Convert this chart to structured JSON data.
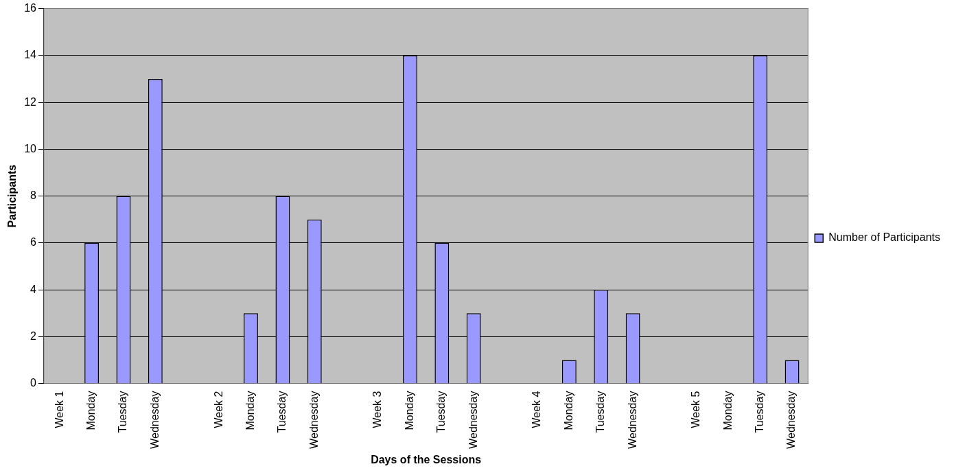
{
  "chart_data": {
    "type": "bar",
    "xlabel": "Days of the Sessions",
    "ylabel": "Participants",
    "categories": [
      "Week 1",
      "Monday",
      "Tuesday",
      "Wednesday",
      null,
      "Week 2",
      "Monday",
      "Tuesday",
      "Wednesday",
      null,
      "Week 3",
      "Monday",
      "Tuesday",
      "Wednesday",
      null,
      "Week 4",
      "Monday",
      "Tuesday",
      "Wednesday",
      null,
      "Week 5",
      "Monday",
      "Tuesday",
      "Wednesday"
    ],
    "series": [
      {
        "name": "Number of Participants",
        "color": "#9999ff",
        "values": [
          null,
          6,
          8,
          13,
          null,
          null,
          3,
          8,
          7,
          null,
          null,
          14,
          6,
          3,
          null,
          null,
          1,
          4,
          3,
          null,
          null,
          null,
          14,
          1
        ]
      }
    ],
    "ylim": [
      0,
      16
    ],
    "yticks": [
      0,
      2,
      4,
      6,
      8,
      10,
      12,
      14,
      16
    ],
    "grid": "y",
    "legend": "right"
  }
}
